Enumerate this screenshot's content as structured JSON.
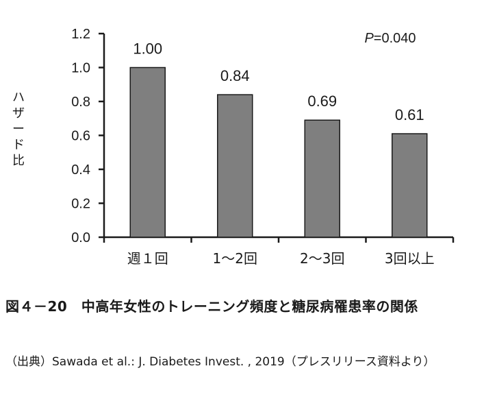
{
  "chart_data": {
    "type": "bar",
    "categories": [
      "週１回",
      "1～2回",
      "2～3回",
      "3回以上"
    ],
    "values": [
      1.0,
      0.84,
      0.69,
      0.61
    ],
    "value_labels": [
      "1.00",
      "0.84",
      "0.69",
      "0.61"
    ],
    "ylabel": "ハザード比",
    "xlabel": "",
    "ylim": [
      0,
      1.2
    ],
    "yticks": [
      "0.0",
      "0.2",
      "0.4",
      "0.6",
      "0.8",
      "1.0",
      "1.2"
    ],
    "annotation": {
      "italic_part": "P",
      "rest": "=0.040"
    },
    "bar_color": "#7f7f7f",
    "grid": false,
    "legend": "none"
  },
  "caption": {
    "title": "図４－20　中高年女性のトレーニング頻度と糖尿病罹患率の関係",
    "source": "（出典）Sawada et al.: J. Diabetes Invest. , 2019（プレスリリース資料より）"
  }
}
